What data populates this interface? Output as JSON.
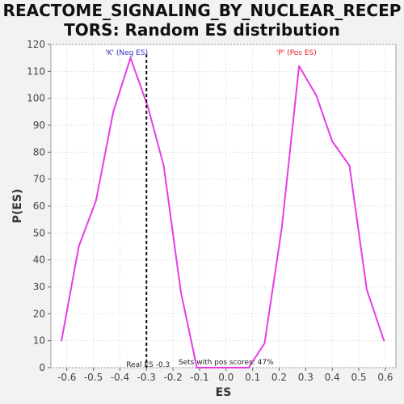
{
  "title": {
    "line1": "REACTOME_SIGNALING_BY_NUCLEAR_RECEP",
    "line2": "TORS: Random ES distribution"
  },
  "chart_data": {
    "type": "line",
    "title": "REACTOME_SIGNALING_BY_NUCLEAR_RECEPTORS: Random ES distribution",
    "xlabel": "ES",
    "ylabel": "P(ES)",
    "xlim": [
      -0.66,
      0.64
    ],
    "ylim": [
      0,
      120
    ],
    "xticks": [
      "-0.6",
      "-0.5",
      "-0.4",
      "-0.3",
      "-0.2",
      "-0.1",
      "0.0",
      "0.1",
      "0.2",
      "0.3",
      "0.4",
      "0.5",
      "0.6"
    ],
    "xtick_values": [
      -0.6,
      -0.5,
      -0.4,
      -0.3,
      -0.2,
      -0.1,
      0.0,
      0.1,
      0.2,
      0.3,
      0.4,
      0.5,
      0.6
    ],
    "yticks": [
      "0",
      "10",
      "20",
      "30",
      "40",
      "50",
      "60",
      "70",
      "80",
      "90",
      "100",
      "110",
      "120"
    ],
    "ytick_values": [
      0,
      10,
      20,
      30,
      40,
      50,
      60,
      70,
      80,
      90,
      100,
      110,
      120
    ],
    "grid": true,
    "series": [
      {
        "color": "#e83be8",
        "x": [
          -0.62,
          -0.555,
          -0.49,
          -0.425,
          -0.36,
          -0.295,
          -0.235,
          -0.17,
          -0.11,
          -0.045,
          0.02,
          0.085,
          0.145,
          0.21,
          0.275,
          0.34,
          0.4,
          0.465,
          0.53,
          0.595
        ],
        "y": [
          10,
          45,
          62,
          95,
          115,
          97,
          75,
          28,
          0,
          0,
          0,
          0,
          9,
          52,
          112,
          101,
          84,
          75,
          29,
          10
        ]
      }
    ],
    "real_es": -0.3,
    "real_es_label": "Real ES -0.3",
    "sets_note": "Sets with pos scores: 47%",
    "neg_label": "'K' (Neg ES)",
    "pos_label": "'P' (Pos ES)",
    "neg_color": "#3030c0",
    "pos_color": "#e02020"
  }
}
